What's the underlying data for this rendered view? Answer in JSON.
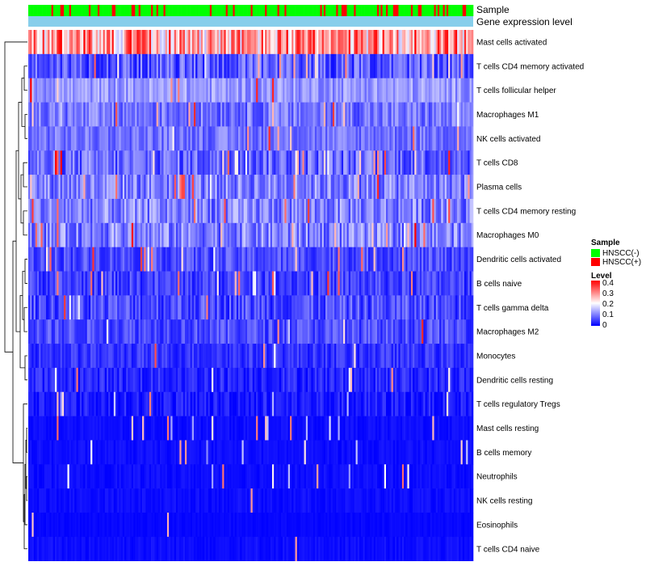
{
  "chart_data": {
    "type": "heatmap",
    "title": "",
    "rows": [
      {
        "label": "Mast cells activated",
        "mean": 0.27,
        "spread": 0.12,
        "spikes": 0.05
      },
      {
        "label": "T cells CD4 memory activated",
        "mean": 0.07,
        "spread": 0.06,
        "spikes": 0.05
      },
      {
        "label": "T cells follicular helper",
        "mean": 0.12,
        "spread": 0.04,
        "spikes": 0.02
      },
      {
        "label": "Macrophages M1",
        "mean": 0.09,
        "spread": 0.05,
        "spikes": 0.04
      },
      {
        "label": "NK cells activated",
        "mean": 0.09,
        "spread": 0.04,
        "spikes": 0.02
      },
      {
        "label": "T cells CD8",
        "mean": 0.08,
        "spread": 0.06,
        "spikes": 0.06
      },
      {
        "label": "Plasma cells",
        "mean": 0.1,
        "spread": 0.06,
        "spikes": 0.06
      },
      {
        "label": "T cells CD4 memory resting",
        "mean": 0.1,
        "spread": 0.06,
        "spikes": 0.04
      },
      {
        "label": "Macrophages M0",
        "mean": 0.1,
        "spread": 0.06,
        "spikes": 0.06
      },
      {
        "label": "Dendritic cells activated",
        "mean": 0.06,
        "spread": 0.04,
        "spikes": 0.03
      },
      {
        "label": "B cells naive",
        "mean": 0.05,
        "spread": 0.04,
        "spikes": 0.03
      },
      {
        "label": "T cells gamma delta",
        "mean": 0.06,
        "spread": 0.05,
        "spikes": 0.03
      },
      {
        "label": "Macrophages M2",
        "mean": 0.06,
        "spread": 0.04,
        "spikes": 0.03
      },
      {
        "label": "Monocytes",
        "mean": 0.04,
        "spread": 0.03,
        "spikes": 0.02
      },
      {
        "label": "Dendritic cells resting",
        "mean": 0.03,
        "spread": 0.03,
        "spikes": 0.02
      },
      {
        "label": "T cells regulatory  Tregs",
        "mean": 0.02,
        "spread": 0.03,
        "spikes": 0.03
      },
      {
        "label": "Mast cells resting",
        "mean": 0.01,
        "spread": 0.01,
        "spikes": 0.04
      },
      {
        "label": "B cells memory",
        "mean": 0.01,
        "spread": 0.01,
        "spikes": 0.03
      },
      {
        "label": "Neutrophils",
        "mean": 0.01,
        "spread": 0.01,
        "spikes": 0.03
      },
      {
        "label": "NK cells resting",
        "mean": 0.01,
        "spread": 0.01,
        "spikes": 0.02
      },
      {
        "label": "Eosinophils",
        "mean": 0.005,
        "spread": 0.005,
        "spikes": 0.01
      },
      {
        "label": "T cells CD4 naive",
        "mean": 0.01,
        "spread": 0.01,
        "spikes": 0.03
      }
    ],
    "n_samples": 250,
    "sample_fraction_positive": 0.2,
    "annotation_tracks": [
      "Sample",
      "Gene expression level"
    ],
    "color_scale": {
      "min": 0,
      "max": 0.4,
      "low": "#0000FF",
      "mid": "#FFFFFF",
      "high": "#FF0000",
      "mid_value": 0.2
    },
    "row_dendrogram": true,
    "legend": {
      "position": "right",
      "sample_title": "Sample",
      "sample_items": [
        {
          "label": "HNSCC(-)",
          "color": "#00FF00"
        },
        {
          "label": "HNSCC(+)",
          "color": "#FF0000"
        }
      ],
      "level_title": "Level",
      "level_ticks": [
        "0.4",
        "0.3",
        "0.2",
        "0.1",
        "0"
      ]
    },
    "track_colors": {
      "gene_expression_level": "#87CEEB"
    }
  }
}
